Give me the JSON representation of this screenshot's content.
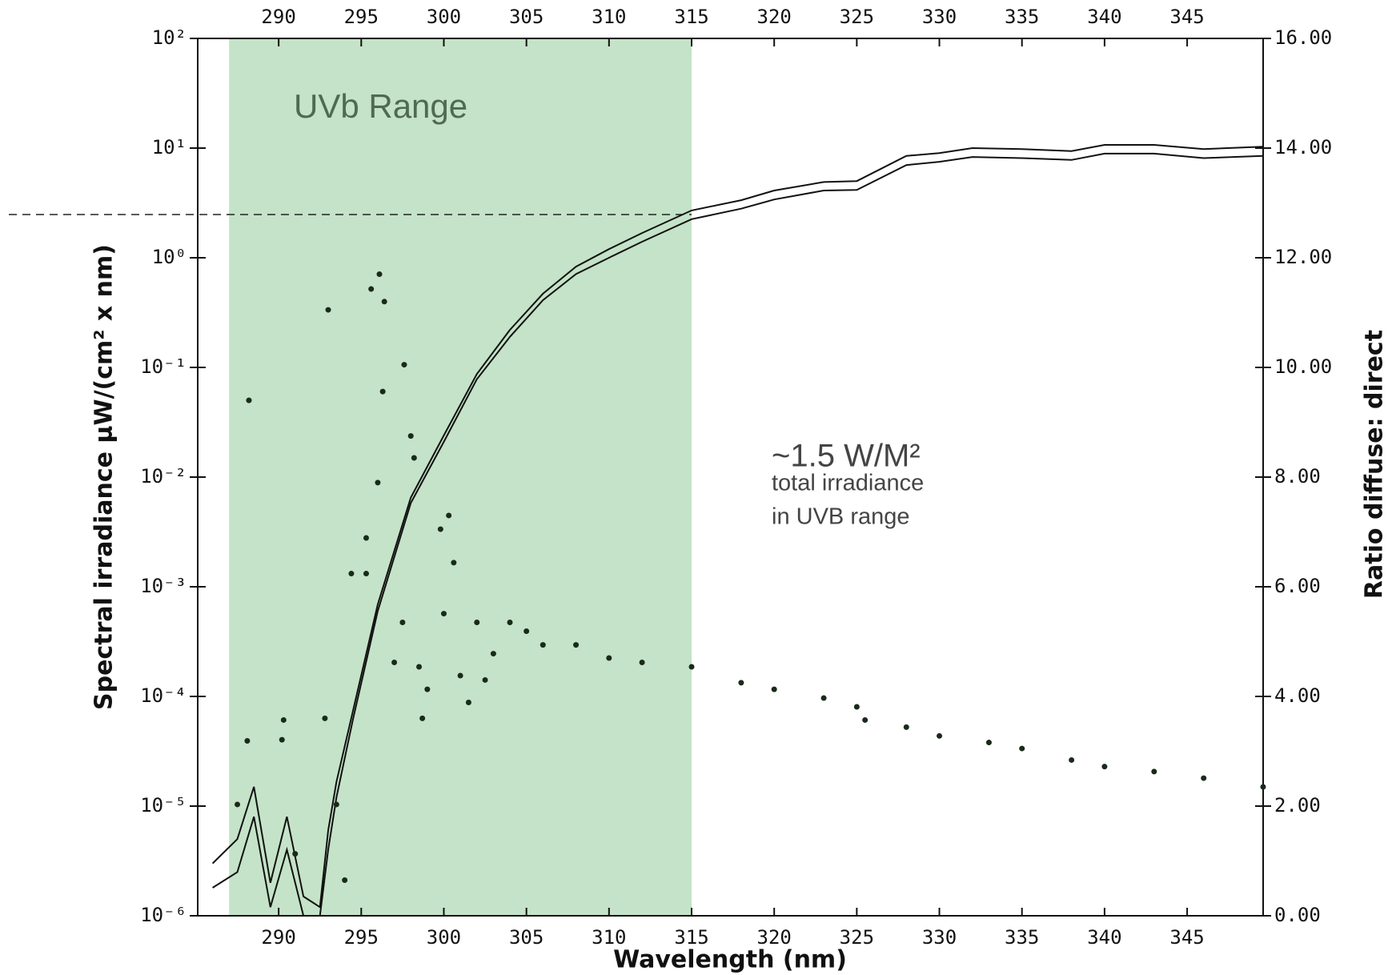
{
  "chart_data": {
    "type": "line",
    "xlabel": "Wavelength (nm)",
    "ylabel": "Spectral irradiance μW/(cm² x nm)",
    "y2label": "Ratio diffuse: direct",
    "yscale": "log",
    "xlim": [
      285.1,
      349.6
    ],
    "ylim": [
      1e-06,
      100
    ],
    "y2lim": [
      0,
      16
    ],
    "xticks": [
      290,
      295,
      300,
      305,
      310,
      315,
      320,
      325,
      330,
      335,
      340,
      345
    ],
    "yticks": [
      {
        "value": 1e-06,
        "label": "10⁻⁶"
      },
      {
        "value": 1e-05,
        "label": "10⁻⁵"
      },
      {
        "value": 0.0001,
        "label": "10⁻⁴"
      },
      {
        "value": 0.001,
        "label": "10⁻³"
      },
      {
        "value": 0.01,
        "label": "10⁻²"
      },
      {
        "value": 0.1,
        "label": "10⁻¹"
      },
      {
        "value": 1,
        "label": "10⁰"
      },
      {
        "value": 10,
        "label": "10¹"
      },
      {
        "value": 100,
        "label": "10²"
      }
    ],
    "y2ticks": [
      {
        "value": 0,
        "label": "0.00"
      },
      {
        "value": 2,
        "label": "2.00"
      },
      {
        "value": 4,
        "label": "4.00"
      },
      {
        "value": 6,
        "label": "6.00"
      },
      {
        "value": 8,
        "label": "8.00"
      },
      {
        "value": 10,
        "label": "10.00"
      },
      {
        "value": 12,
        "label": "12.00"
      },
      {
        "value": 14,
        "label": "14.00"
      },
      {
        "value": 16,
        "label": "16.00"
      }
    ],
    "shaded_region": {
      "x": [
        287,
        315
      ],
      "color": "#c4e3c8"
    },
    "hline": {
      "value": 2.48,
      "dashed": true
    },
    "annotations": [
      "UVb Range",
      "~1.5 W/M²",
      "total irradiance",
      "in UVB range"
    ],
    "series": [
      {
        "color": "#111111",
        "x": [
          286,
          287.5,
          288.5,
          289.5,
          290.5,
          291.5,
          292.5,
          293,
          293.5,
          294.5,
          296,
          298,
          300,
          302,
          304,
          306,
          308,
          310,
          312,
          315,
          318,
          320,
          323,
          325,
          328,
          330,
          332,
          335,
          338,
          340,
          343,
          346,
          349.6
        ],
        "values": [
          3e-06,
          5e-06,
          1.5e-05,
          2e-06,
          8e-06,
          1.5e-06,
          1.2e-06,
          6e-06,
          1.66e-05,
          7.4e-05,
          0.00069,
          0.0065,
          0.024,
          0.087,
          0.22,
          0.47,
          0.83,
          1.2,
          1.68,
          2.7,
          3.35,
          4.1,
          4.9,
          5.0,
          8.5,
          9.0,
          10,
          9.8,
          9.4,
          10.7,
          10.7,
          9.8,
          10.3
        ]
      },
      {
        "color": "#111111",
        "x": [
          286,
          287.5,
          288.5,
          289.5,
          290.5,
          291.5,
          292.5,
          293,
          293.5,
          294.5,
          296,
          298,
          300,
          302,
          304,
          306,
          308,
          310,
          312,
          315,
          318,
          320,
          323,
          325,
          328,
          330,
          332,
          335,
          338,
          340,
          343,
          346,
          349.6
        ],
        "values": [
          1.8e-06,
          2.5e-06,
          8e-06,
          1.2e-06,
          4e-06,
          1e-06,
          1e-06,
          4e-06,
          1.2e-05,
          6.2e-05,
          0.0006,
          0.0058,
          0.021,
          0.078,
          0.19,
          0.41,
          0.71,
          1.0,
          1.4,
          2.25,
          2.8,
          3.4,
          4.1,
          4.15,
          7.0,
          7.5,
          8.3,
          8.1,
          7.8,
          8.9,
          8.9,
          8.1,
          8.5
        ]
      },
      {
        "type": "scatter",
        "axis": "y2",
        "color": "#1a2a1a",
        "x": [
          288.2,
          293,
          295.6,
          296.1,
          296.4,
          297.6,
          296.3,
          298,
          298.2,
          296,
          300.3,
          299.8,
          295.3,
          300.6,
          294.4,
          295.3,
          292.8,
          290.3,
          288.1,
          290.2,
          298.7,
          287.5,
          291,
          293.5,
          294,
          297,
          297.5,
          298.5,
          299,
          301,
          301.5,
          302.5,
          303,
          304,
          306,
          300,
          302,
          305,
          308,
          310,
          312,
          315,
          318,
          320,
          323,
          325,
          325.5,
          328,
          330,
          333,
          335,
          338,
          340,
          343,
          346,
          349.6
        ],
        "values": [
          9.4,
          11.05,
          11.43,
          11.7,
          11.2,
          10.05,
          9.56,
          8.75,
          8.35,
          7.9,
          7.3,
          7.05,
          6.89,
          6.44,
          6.24,
          6.24,
          3.6,
          3.57,
          3.19,
          3.21,
          3.6,
          2.03,
          1.13,
          2.03,
          0.65,
          4.62,
          5.35,
          4.54,
          4.13,
          4.38,
          3.89,
          4.3,
          4.78,
          5.35,
          4.94,
          5.51,
          5.35,
          5.19,
          4.94,
          4.7,
          4.62,
          4.54,
          4.25,
          4.13,
          3.97,
          3.81,
          3.57,
          3.44,
          3.28,
          3.16,
          3.05,
          2.84,
          2.72,
          2.63,
          2.51,
          2.35
        ]
      }
    ]
  }
}
